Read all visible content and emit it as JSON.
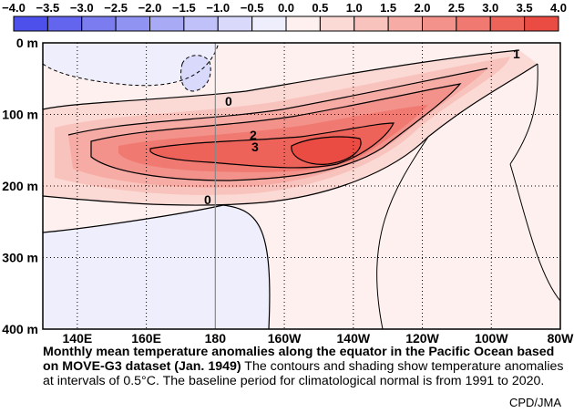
{
  "chart_data": {
    "type": "heatmap",
    "title": "",
    "colorbar": {
      "ticks": [
        "−4.0",
        "−3.5",
        "−3.0",
        "−2.5",
        "−2.0",
        "−1.5",
        "−1.0",
        "−0.5",
        "0.0",
        "0.5",
        "1.0",
        "1.5",
        "2.0",
        "2.5",
        "3.0",
        "3.5",
        "4.0"
      ],
      "colors": [
        "#4e50ec",
        "#6365ee",
        "#7a7cf0",
        "#9193f3",
        "#a8aaf6",
        "#c0c1f9",
        "#d8d9fb",
        "#eeeefd",
        "#fdf0ee",
        "#fbdad6",
        "#f9c3bd",
        "#f6aba4",
        "#f3928b",
        "#f07a72",
        "#ed6259",
        "#ea4b42"
      ]
    },
    "yaxis": {
      "ticks": [
        "0 m",
        "100 m",
        "200 m",
        "300 m",
        "400 m"
      ],
      "range": [
        0,
        400
      ]
    },
    "xaxis": {
      "ticks": [
        "140E",
        "160E",
        "180",
        "160W",
        "140W",
        "120W",
        "100W",
        "80W"
      ],
      "range": [
        130,
        280
      ]
    },
    "contour_labels": [
      "0",
      "2",
      "3",
      "0",
      "1"
    ],
    "grid": true
  },
  "caption": {
    "bold": "Monthly mean temperature anomalies along the equator in the Pacific Ocean based on MOVE-G3 dataset (Jan. 1949)",
    "rest": " The contours and shading show temperature anomalies at intervals of 0.5°C.  The baseline period for climatological normal is from 1991 to 2020."
  },
  "credit": "CPD/JMA"
}
